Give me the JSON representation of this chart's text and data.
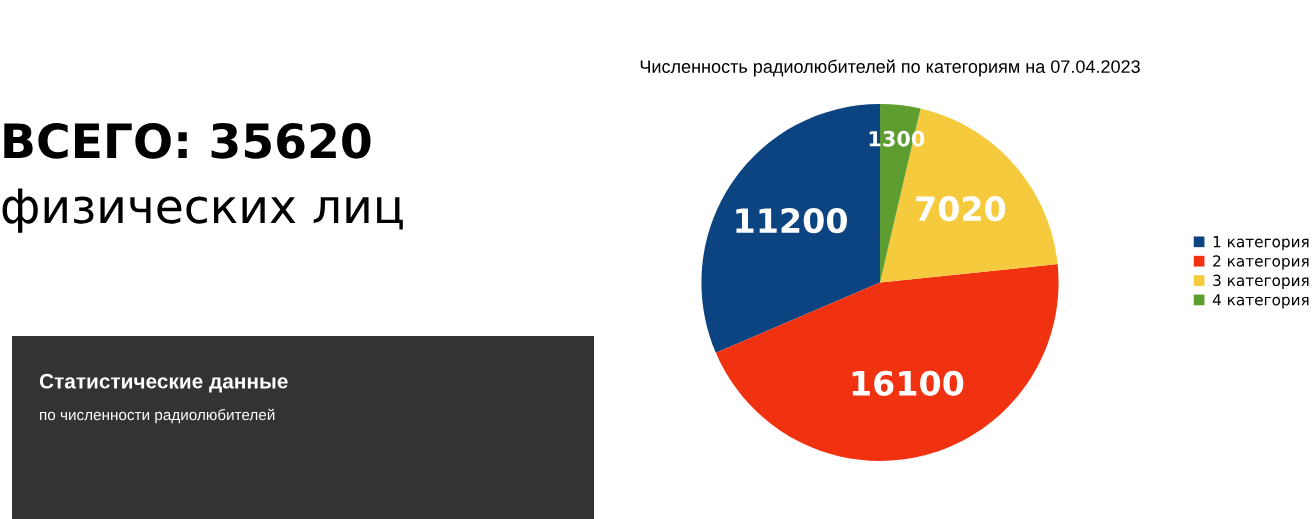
{
  "chart_data": {
    "type": "pie",
    "title": "Численность радиолюбителей по категориям на 07.04.2023",
    "categories": [
      "1 категория",
      "2 категория",
      "3 категория",
      "4 категория"
    ],
    "values": [
      11200,
      16100,
      7020,
      1300
    ],
    "colors": [
      "#0b4480",
      "#f03211",
      "#f5ca3c",
      "#5e9d2f"
    ],
    "data_labels": true,
    "legend": "right",
    "annotations": [
      "ВСЕГО: 35620",
      "физических лиц",
      "Статистические данные",
      "по численности радиолюбителей"
    ]
  }
}
